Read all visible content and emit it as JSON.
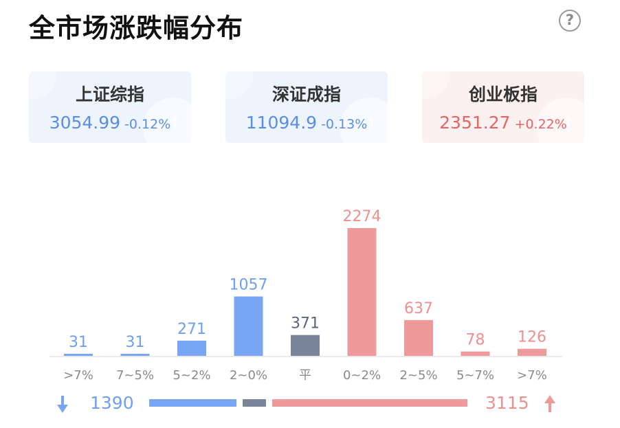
{
  "title": "全市场涨跌幅分布",
  "help_icon": "?",
  "indices": [
    {
      "name": "上证综指",
      "value": "3054.99",
      "change": "-0.12%",
      "trend": "down"
    },
    {
      "name": "深证成指",
      "value": "11094.9",
      "change": "-0.13%",
      "trend": "down"
    },
    {
      "name": "创业板指",
      "value": "2351.27",
      "change": "+0.22%",
      "trend": "up"
    }
  ],
  "chart_data": {
    "type": "bar",
    "categories": [
      ">7%",
      "7~5%",
      "5~2%",
      "2~0%",
      "平",
      "0~2%",
      "2~5%",
      "5~7%",
      ">7%"
    ],
    "values": [
      31,
      31,
      271,
      1057,
      371,
      2274,
      637,
      78,
      126
    ],
    "groups": [
      "down",
      "down",
      "down",
      "down",
      "flat",
      "up",
      "up",
      "up",
      "up"
    ],
    "colors": {
      "down": "#78a6f5",
      "flat": "#7a8599",
      "up": "#ee9a9a"
    },
    "label_colors": {
      "down": "#6f9ff2",
      "flat": "#5c6577",
      "up": "#ef8f8f"
    },
    "ylim": [
      0,
      2274
    ],
    "title": "",
    "xlabel": "",
    "ylabel": "",
    "grid": false
  },
  "summary": {
    "down_count": "1390",
    "up_count": "3115",
    "down_total": 1390,
    "flat_total": 371,
    "up_total": 3115
  }
}
